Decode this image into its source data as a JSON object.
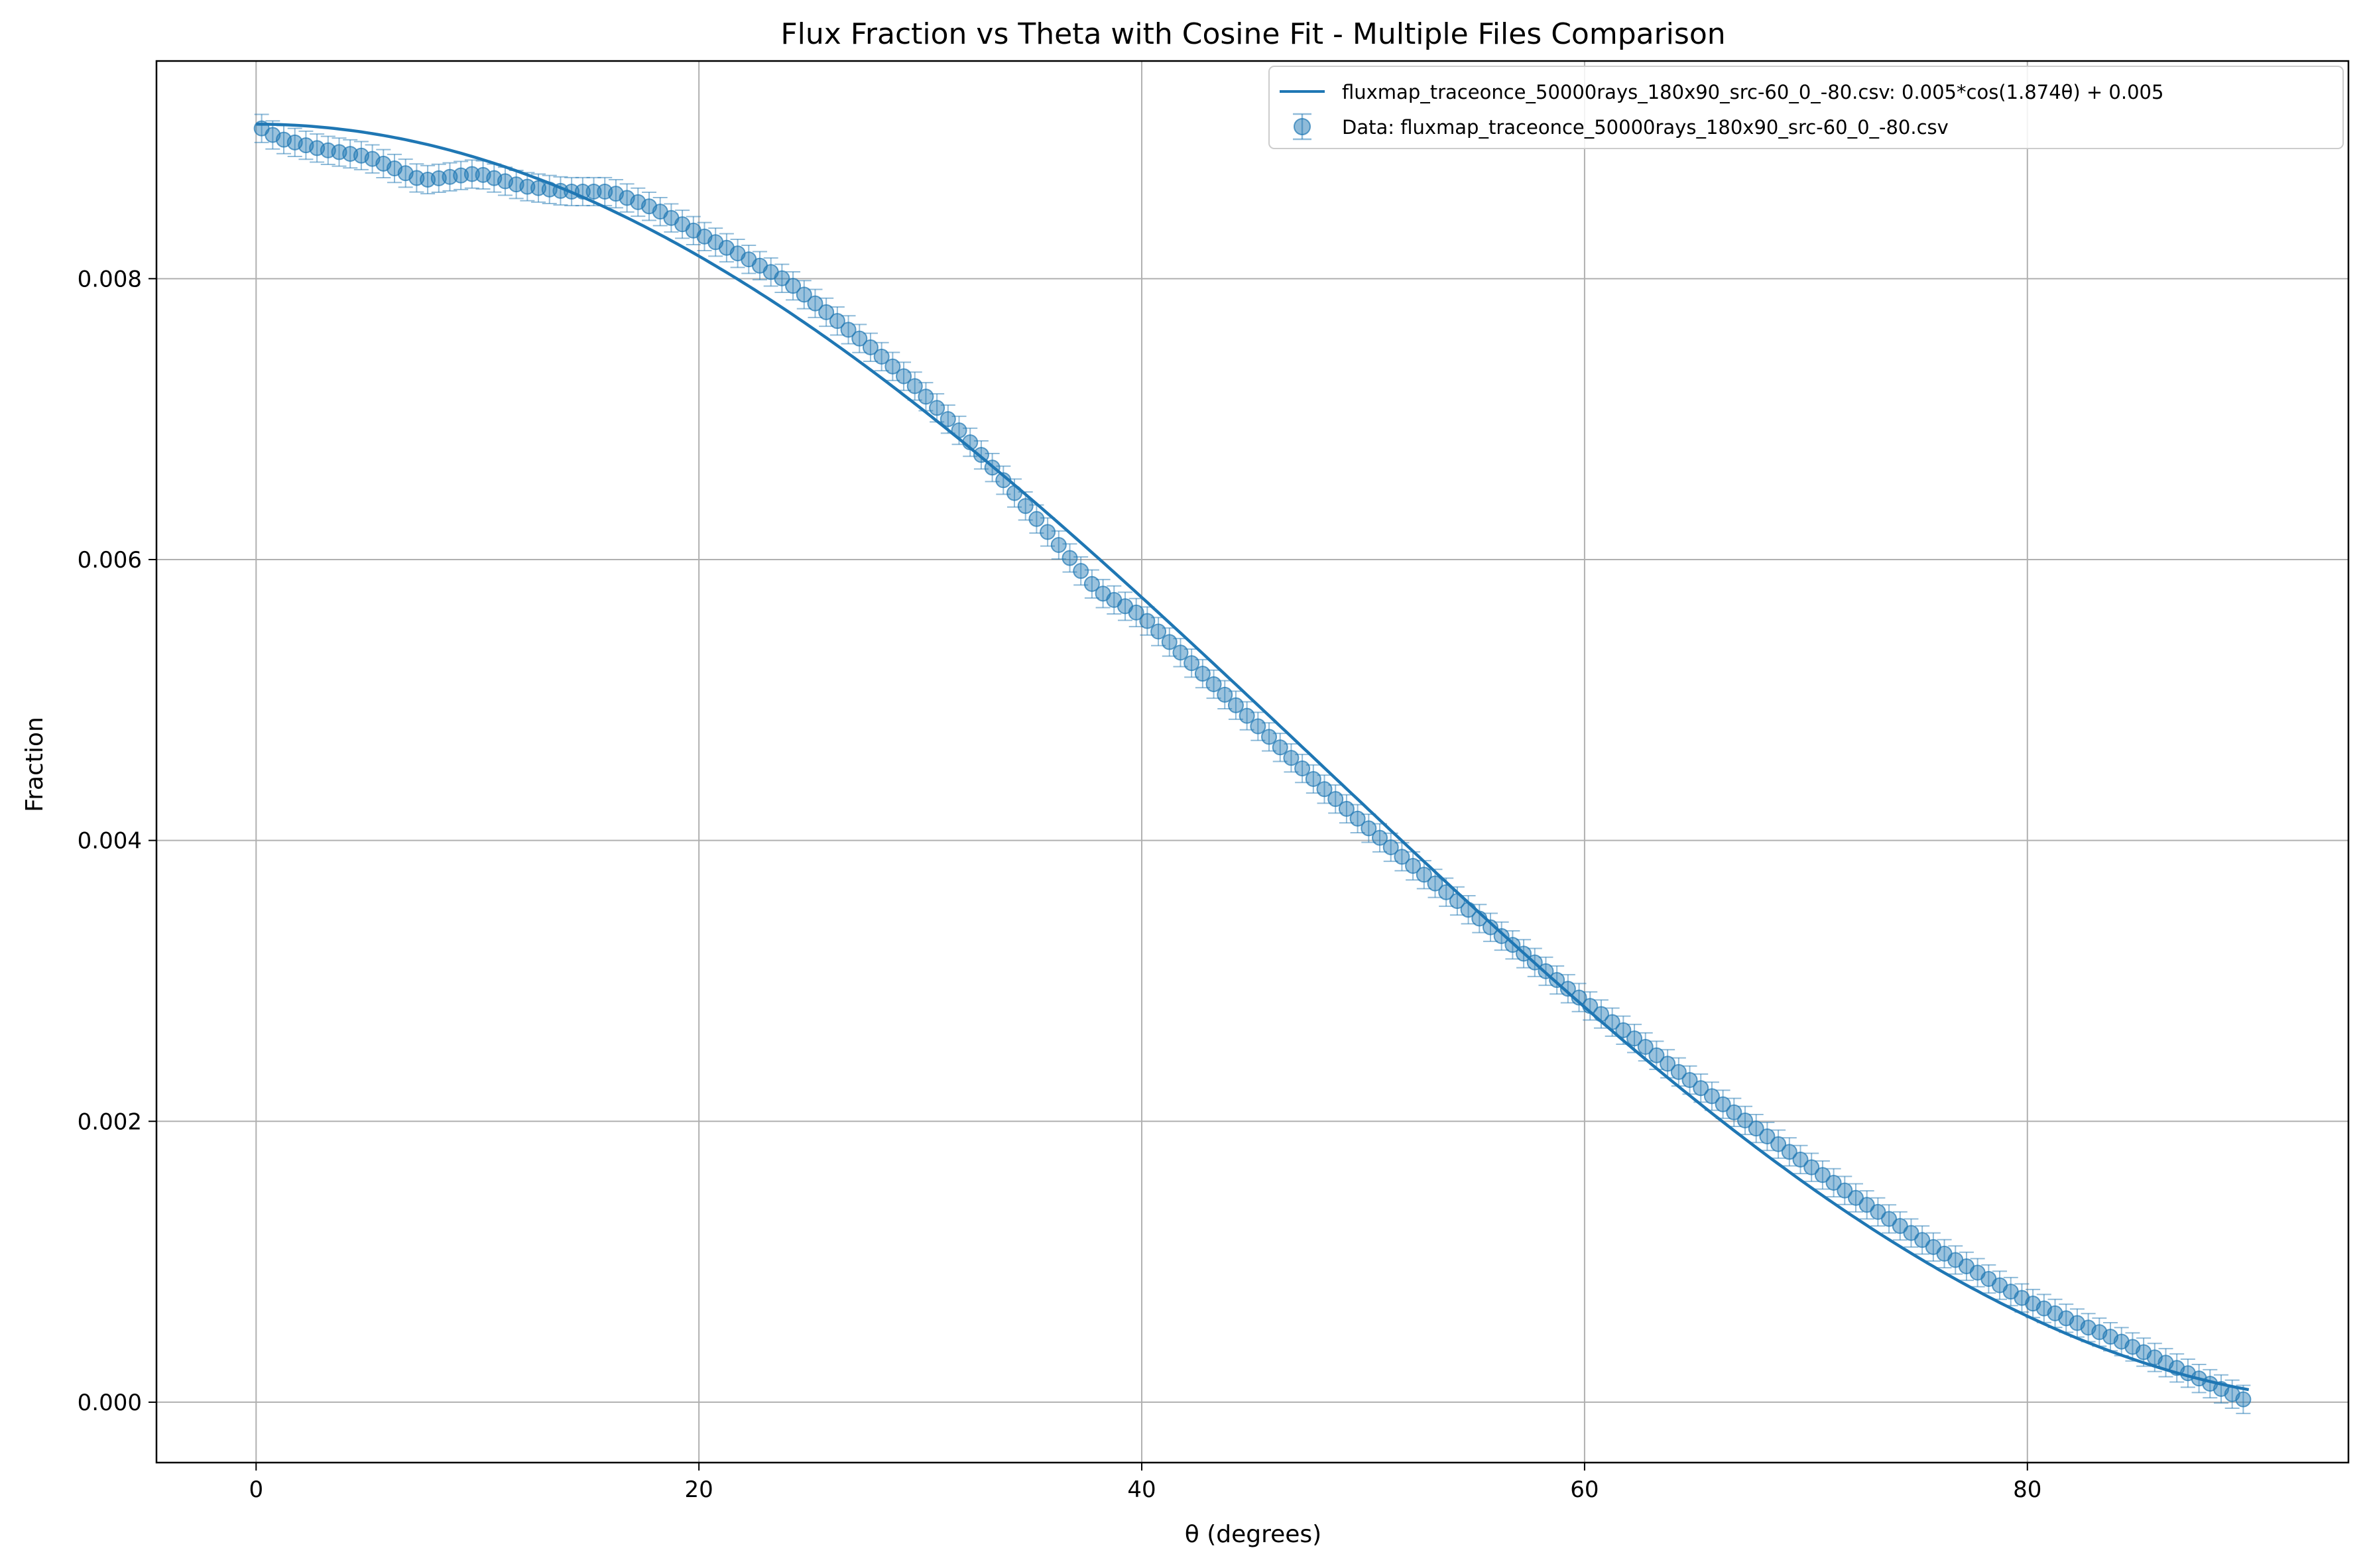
{
  "chart_data": {
    "type": "scatter",
    "title": "Flux Fraction vs Theta with Cosine Fit - Multiple Files Comparison",
    "xlabel": "θ (degrees)",
    "ylabel": "Fraction",
    "xlim": [
      -4.5,
      94.5
    ],
    "ylim": [
      -0.00043,
      0.00955
    ],
    "xticks": [
      0,
      20,
      40,
      60,
      80
    ],
    "xtick_labels": [
      "0",
      "20",
      "40",
      "60",
      "80"
    ],
    "yticks": [
      0.0,
      0.002,
      0.004,
      0.006,
      0.008
    ],
    "ytick_labels": [
      "0.000",
      "0.002",
      "0.004",
      "0.006",
      "0.008"
    ],
    "grid": true,
    "legend_position": "top-right",
    "color": "#1f77b4",
    "series": [
      {
        "name": "fluxmap_traceonce_50000rays_180x90_src-60_0_-80.csv: 0.005*cos(1.874θ) + 0.005",
        "kind": "line",
        "model": {
          "amplitude": 0.00455,
          "frequency": 1.874,
          "offset": 0.00455
        },
        "x_range": [
          0,
          90
        ]
      },
      {
        "name": "Data: fluxmap_traceonce_50000rays_180x90_src-60_0_-80.csv",
        "kind": "errorbar",
        "x_step": 0.5,
        "x_start": 0.25,
        "y_error": 0.0001,
        "anchors": {
          "x": [
            0.25,
            1,
            3,
            5,
            7.5,
            10,
            12,
            14,
            16,
            18,
            20,
            22,
            24,
            26,
            28,
            30,
            32,
            34,
            36,
            38,
            40,
            42,
            44,
            46,
            48,
            50,
            52,
            54,
            56,
            58,
            60,
            62,
            64,
            66,
            68,
            70,
            72,
            74,
            76,
            78,
            80,
            82,
            84,
            86,
            88,
            89.75
          ],
          "y": [
            0.00907,
            0.009,
            0.00892,
            0.00887,
            0.0087,
            0.00875,
            0.00866,
            0.00862,
            0.00862,
            0.0085,
            0.00832,
            0.00816,
            0.00798,
            0.00773,
            0.00748,
            0.0072,
            0.00688,
            0.00652,
            0.00615,
            0.00578,
            0.0056,
            0.0053,
            0.005,
            0.0047,
            0.0044,
            0.00412,
            0.00385,
            0.0036,
            0.00335,
            0.0031,
            0.00285,
            0.00262,
            0.00238,
            0.00215,
            0.00192,
            0.0017,
            0.00148,
            0.00128,
            0.00108,
            0.0009,
            0.00072,
            0.00058,
            0.00045,
            0.0003,
            0.00015,
            2e-05
          ]
        }
      }
    ]
  }
}
